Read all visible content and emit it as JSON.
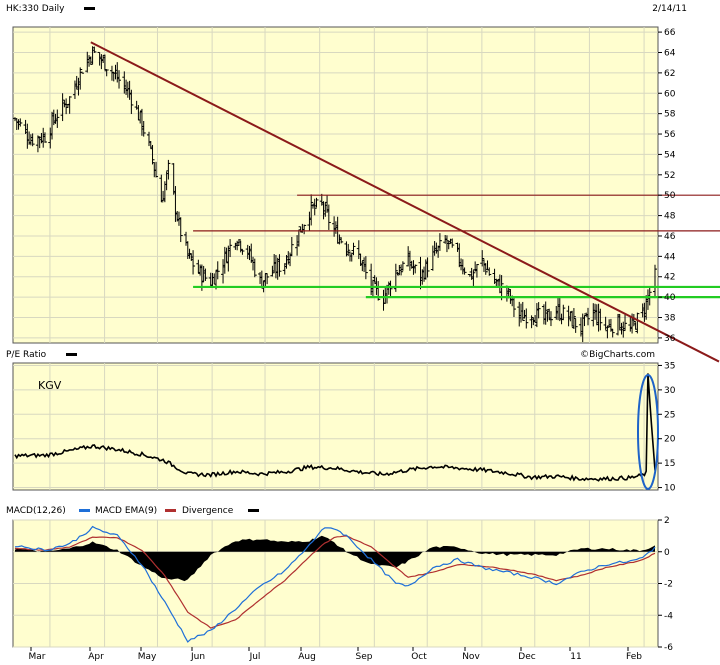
{
  "header": {
    "symbol_title": "HK:330 Daily",
    "date": "2/14/11"
  },
  "watermark": "©BigCharts.com",
  "colors": {
    "panel_bg": "#fffecf",
    "trend_line": "#8b1a1a",
    "support_line": "#22cc22",
    "macd_line": "#1e6fd8",
    "ema_line": "#b03030",
    "annotation_ellipse": "#1e63c8"
  },
  "months": [
    "Mar",
    "Apr",
    "May",
    "Jun",
    "Jul",
    "Aug",
    "Sep",
    "Oct",
    "Nov",
    "Dec",
    "11",
    "Feb"
  ],
  "chart_data": [
    {
      "type": "ohlc",
      "name": "price",
      "title": "HK:330 Daily",
      "ylim": [
        35.5,
        66.5
      ],
      "yticks": [
        36,
        38,
        40,
        42,
        44,
        46,
        48,
        50,
        52,
        54,
        56,
        58,
        60,
        62,
        64,
        66
      ],
      "x_range": [
        "2010-02-16",
        "2011-02-14"
      ],
      "close_path": [
        [
          "2010-02-16",
          57.5
        ],
        [
          "2010-02-25",
          55.5
        ],
        [
          "2010-03-05",
          55.8
        ],
        [
          "2010-03-12",
          58.0
        ],
        [
          "2010-03-19",
          59.5
        ],
        [
          "2010-03-26",
          62.5
        ],
        [
          "2010-04-01",
          64.0
        ],
        [
          "2010-04-08",
          63.0
        ],
        [
          "2010-04-15",
          61.5
        ],
        [
          "2010-04-22",
          60.0
        ],
        [
          "2010-04-29",
          57.0
        ],
        [
          "2010-05-05",
          53.5
        ],
        [
          "2010-05-10",
          49.5
        ],
        [
          "2010-05-14",
          52.5
        ],
        [
          "2010-05-20",
          47.0
        ],
        [
          "2010-05-25",
          44.0
        ],
        [
          "2010-05-31",
          42.5
        ],
        [
          "2010-06-07",
          41.5
        ],
        [
          "2010-06-14",
          43.5
        ],
        [
          "2010-06-21",
          46.0
        ],
        [
          "2010-06-28",
          44.5
        ],
        [
          "2010-07-05",
          41.5
        ],
        [
          "2010-07-12",
          42.5
        ],
        [
          "2010-07-19",
          43.5
        ],
        [
          "2010-07-26",
          46.0
        ],
        [
          "2010-08-02",
          48.5
        ],
        [
          "2010-08-09",
          49.0
        ],
        [
          "2010-08-16",
          46.5
        ],
        [
          "2010-08-23",
          45.0
        ],
        [
          "2010-08-30",
          44.0
        ],
        [
          "2010-09-06",
          41.0
        ],
        [
          "2010-09-13",
          40.0
        ],
        [
          "2010-09-20",
          42.5
        ],
        [
          "2010-09-27",
          43.5
        ],
        [
          "2010-10-04",
          42.0
        ],
        [
          "2010-10-11",
          44.0
        ],
        [
          "2010-10-18",
          45.5
        ],
        [
          "2010-10-25",
          44.0
        ],
        [
          "2010-11-01",
          42.0
        ],
        [
          "2010-11-08",
          43.5
        ],
        [
          "2010-11-15",
          41.5
        ],
        [
          "2010-11-22",
          40.5
        ],
        [
          "2010-11-29",
          38.0
        ],
        [
          "2010-12-06",
          38.5
        ],
        [
          "2010-12-13",
          37.8
        ],
        [
          "2010-12-20",
          38.7
        ],
        [
          "2010-12-27",
          38.0
        ],
        [
          "2011-01-03",
          37.0
        ],
        [
          "2011-01-10",
          38.5
        ],
        [
          "2011-01-17",
          37.0
        ],
        [
          "2011-01-24",
          37.5
        ],
        [
          "2011-01-31",
          36.8
        ],
        [
          "2011-02-07",
          38.5
        ],
        [
          "2011-02-10",
          40.0
        ],
        [
          "2011-02-14",
          42.0
        ]
      ],
      "annotations": {
        "trend_line": {
          "from": [
            "2010-03-31",
            65.0
          ],
          "to": [
            "2011-03-05",
            35.2
          ]
        },
        "resistance_lines": [
          {
            "y": 50.0,
            "from": "2010-07-26",
            "to": "2011-03-05"
          },
          {
            "y": 46.5,
            "from": "2010-05-28",
            "to": "2011-03-05"
          }
        ],
        "support_lines": [
          {
            "y": 41.0,
            "from": "2010-05-28",
            "to": "2011-03-05"
          },
          {
            "y": 40.0,
            "from": "2010-09-03",
            "to": "2011-03-05"
          }
        ]
      }
    },
    {
      "type": "line",
      "name": "pe_ratio",
      "title": "P/E Ratio",
      "label": "KGV",
      "ylim": [
        9.5,
        35.5
      ],
      "yticks": [
        10,
        15,
        20,
        25,
        30,
        35
      ],
      "values_path": [
        [
          "2010-02-16",
          16.5
        ],
        [
          "2010-03-05",
          16.6
        ],
        [
          "2010-03-19",
          17.5
        ],
        [
          "2010-04-01",
          18.5
        ],
        [
          "2010-04-15",
          17.8
        ],
        [
          "2010-04-29",
          16.8
        ],
        [
          "2010-05-12",
          15.5
        ],
        [
          "2010-05-25",
          12.8
        ],
        [
          "2010-06-07",
          12.6
        ],
        [
          "2010-06-21",
          13.3
        ],
        [
          "2010-07-05",
          12.8
        ],
        [
          "2010-07-19",
          13.2
        ],
        [
          "2010-08-02",
          14.2
        ],
        [
          "2010-08-16",
          14.0
        ],
        [
          "2010-08-30",
          13.2
        ],
        [
          "2010-09-13",
          12.7
        ],
        [
          "2010-09-27",
          13.6
        ],
        [
          "2010-10-11",
          14.3
        ],
        [
          "2010-10-25",
          14.0
        ],
        [
          "2010-11-08",
          13.6
        ],
        [
          "2010-11-22",
          13.0
        ],
        [
          "2010-12-06",
          12.1
        ],
        [
          "2010-12-20",
          12.3
        ],
        [
          "2011-01-03",
          11.8
        ],
        [
          "2011-01-17",
          11.8
        ],
        [
          "2011-01-31",
          12.0
        ],
        [
          "2011-02-07",
          12.5
        ],
        [
          "2011-02-09",
          13.0
        ],
        [
          "2011-02-10",
          33.0
        ],
        [
          "2011-02-11",
          28.0
        ],
        [
          "2011-02-14",
          13.5
        ]
      ]
    },
    {
      "type": "line",
      "name": "macd",
      "title": "MACD(12,26)",
      "ylim": [
        -6,
        2
      ],
      "yticks": [
        2,
        0,
        -2,
        -4,
        -6
      ],
      "series": [
        {
          "name": "MACD(12,26)",
          "values_path": [
            [
              "2010-02-16",
              0.4
            ],
            [
              "2010-03-05",
              0.1
            ],
            [
              "2010-03-19",
              0.5
            ],
            [
              "2010-04-01",
              1.5
            ],
            [
              "2010-04-15",
              1.0
            ],
            [
              "2010-04-29",
              -0.8
            ],
            [
              "2010-05-12",
              -3.2
            ],
            [
              "2010-05-25",
              -5.6
            ],
            [
              "2010-06-07",
              -5.0
            ],
            [
              "2010-06-21",
              -3.6
            ],
            [
              "2010-07-05",
              -2.2
            ],
            [
              "2010-07-19",
              -1.2
            ],
            [
              "2010-08-02",
              0.4
            ],
            [
              "2010-08-09",
              1.4
            ],
            [
              "2010-08-16",
              1.5
            ],
            [
              "2010-08-23",
              1.0
            ],
            [
              "2010-09-06",
              -0.5
            ],
            [
              "2010-09-20",
              -2.0
            ],
            [
              "2010-09-27",
              -2.2
            ],
            [
              "2010-10-11",
              -1.0
            ],
            [
              "2010-10-25",
              -0.5
            ],
            [
              "2010-11-08",
              -1.0
            ],
            [
              "2010-11-22",
              -1.3
            ],
            [
              "2010-12-06",
              -1.6
            ],
            [
              "2010-12-20",
              -2.0
            ],
            [
              "2011-01-03",
              -1.3
            ],
            [
              "2011-01-17",
              -0.8
            ],
            [
              "2011-01-31",
              -0.6
            ],
            [
              "2011-02-07",
              -0.4
            ],
            [
              "2011-02-14",
              0.3
            ]
          ]
        },
        {
          "name": "MACD EMA(9)",
          "values_path": [
            [
              "2010-02-16",
              0.2
            ],
            [
              "2010-03-05",
              0.1
            ],
            [
              "2010-03-19",
              0.3
            ],
            [
              "2010-04-01",
              0.9
            ],
            [
              "2010-04-15",
              0.9
            ],
            [
              "2010-04-29",
              0.1
            ],
            [
              "2010-05-12",
              -1.5
            ],
            [
              "2010-05-25",
              -3.8
            ],
            [
              "2010-06-07",
              -4.8
            ],
            [
              "2010-06-21",
              -4.3
            ],
            [
              "2010-07-05",
              -3.0
            ],
            [
              "2010-07-19",
              -1.8
            ],
            [
              "2010-08-02",
              -0.3
            ],
            [
              "2010-08-09",
              0.4
            ],
            [
              "2010-08-16",
              0.9
            ],
            [
              "2010-08-23",
              1.0
            ],
            [
              "2010-09-06",
              0.3
            ],
            [
              "2010-09-20",
              -1.0
            ],
            [
              "2010-09-27",
              -1.6
            ],
            [
              "2010-10-11",
              -1.3
            ],
            [
              "2010-10-25",
              -0.8
            ],
            [
              "2010-11-08",
              -0.9
            ],
            [
              "2010-11-22",
              -1.1
            ],
            [
              "2010-12-06",
              -1.4
            ],
            [
              "2010-12-20",
              -1.8
            ],
            [
              "2011-01-03",
              -1.5
            ],
            [
              "2011-01-17",
              -1.0
            ],
            [
              "2011-01-31",
              -0.7
            ],
            [
              "2011-02-07",
              -0.5
            ],
            [
              "2011-02-14",
              -0.1
            ]
          ]
        },
        {
          "name": "Divergence",
          "type": "area",
          "values_path": [
            [
              "2010-02-16",
              0.2
            ],
            [
              "2010-03-05",
              0.0
            ],
            [
              "2010-03-19",
              0.2
            ],
            [
              "2010-04-01",
              0.6
            ],
            [
              "2010-04-15",
              0.1
            ],
            [
              "2010-04-29",
              -0.9
            ],
            [
              "2010-05-12",
              -1.7
            ],
            [
              "2010-05-25",
              -1.8
            ],
            [
              "2010-06-07",
              -0.2
            ],
            [
              "2010-06-21",
              0.7
            ],
            [
              "2010-07-05",
              0.8
            ],
            [
              "2010-07-19",
              0.6
            ],
            [
              "2010-08-02",
              0.7
            ],
            [
              "2010-08-09",
              1.0
            ],
            [
              "2010-08-16",
              0.6
            ],
            [
              "2010-08-23",
              0.0
            ],
            [
              "2010-09-06",
              -0.8
            ],
            [
              "2010-09-20",
              -1.0
            ],
            [
              "2010-09-27",
              -0.6
            ],
            [
              "2010-10-11",
              0.3
            ],
            [
              "2010-10-25",
              0.3
            ],
            [
              "2010-11-08",
              -0.1
            ],
            [
              "2010-11-22",
              -0.2
            ],
            [
              "2010-12-06",
              -0.2
            ],
            [
              "2010-12-20",
              -0.2
            ],
            [
              "2011-01-03",
              0.2
            ],
            [
              "2011-01-17",
              0.2
            ],
            [
              "2011-01-31",
              0.1
            ],
            [
              "2011-02-07",
              0.1
            ],
            [
              "2011-02-14",
              0.4
            ]
          ]
        }
      ]
    }
  ]
}
